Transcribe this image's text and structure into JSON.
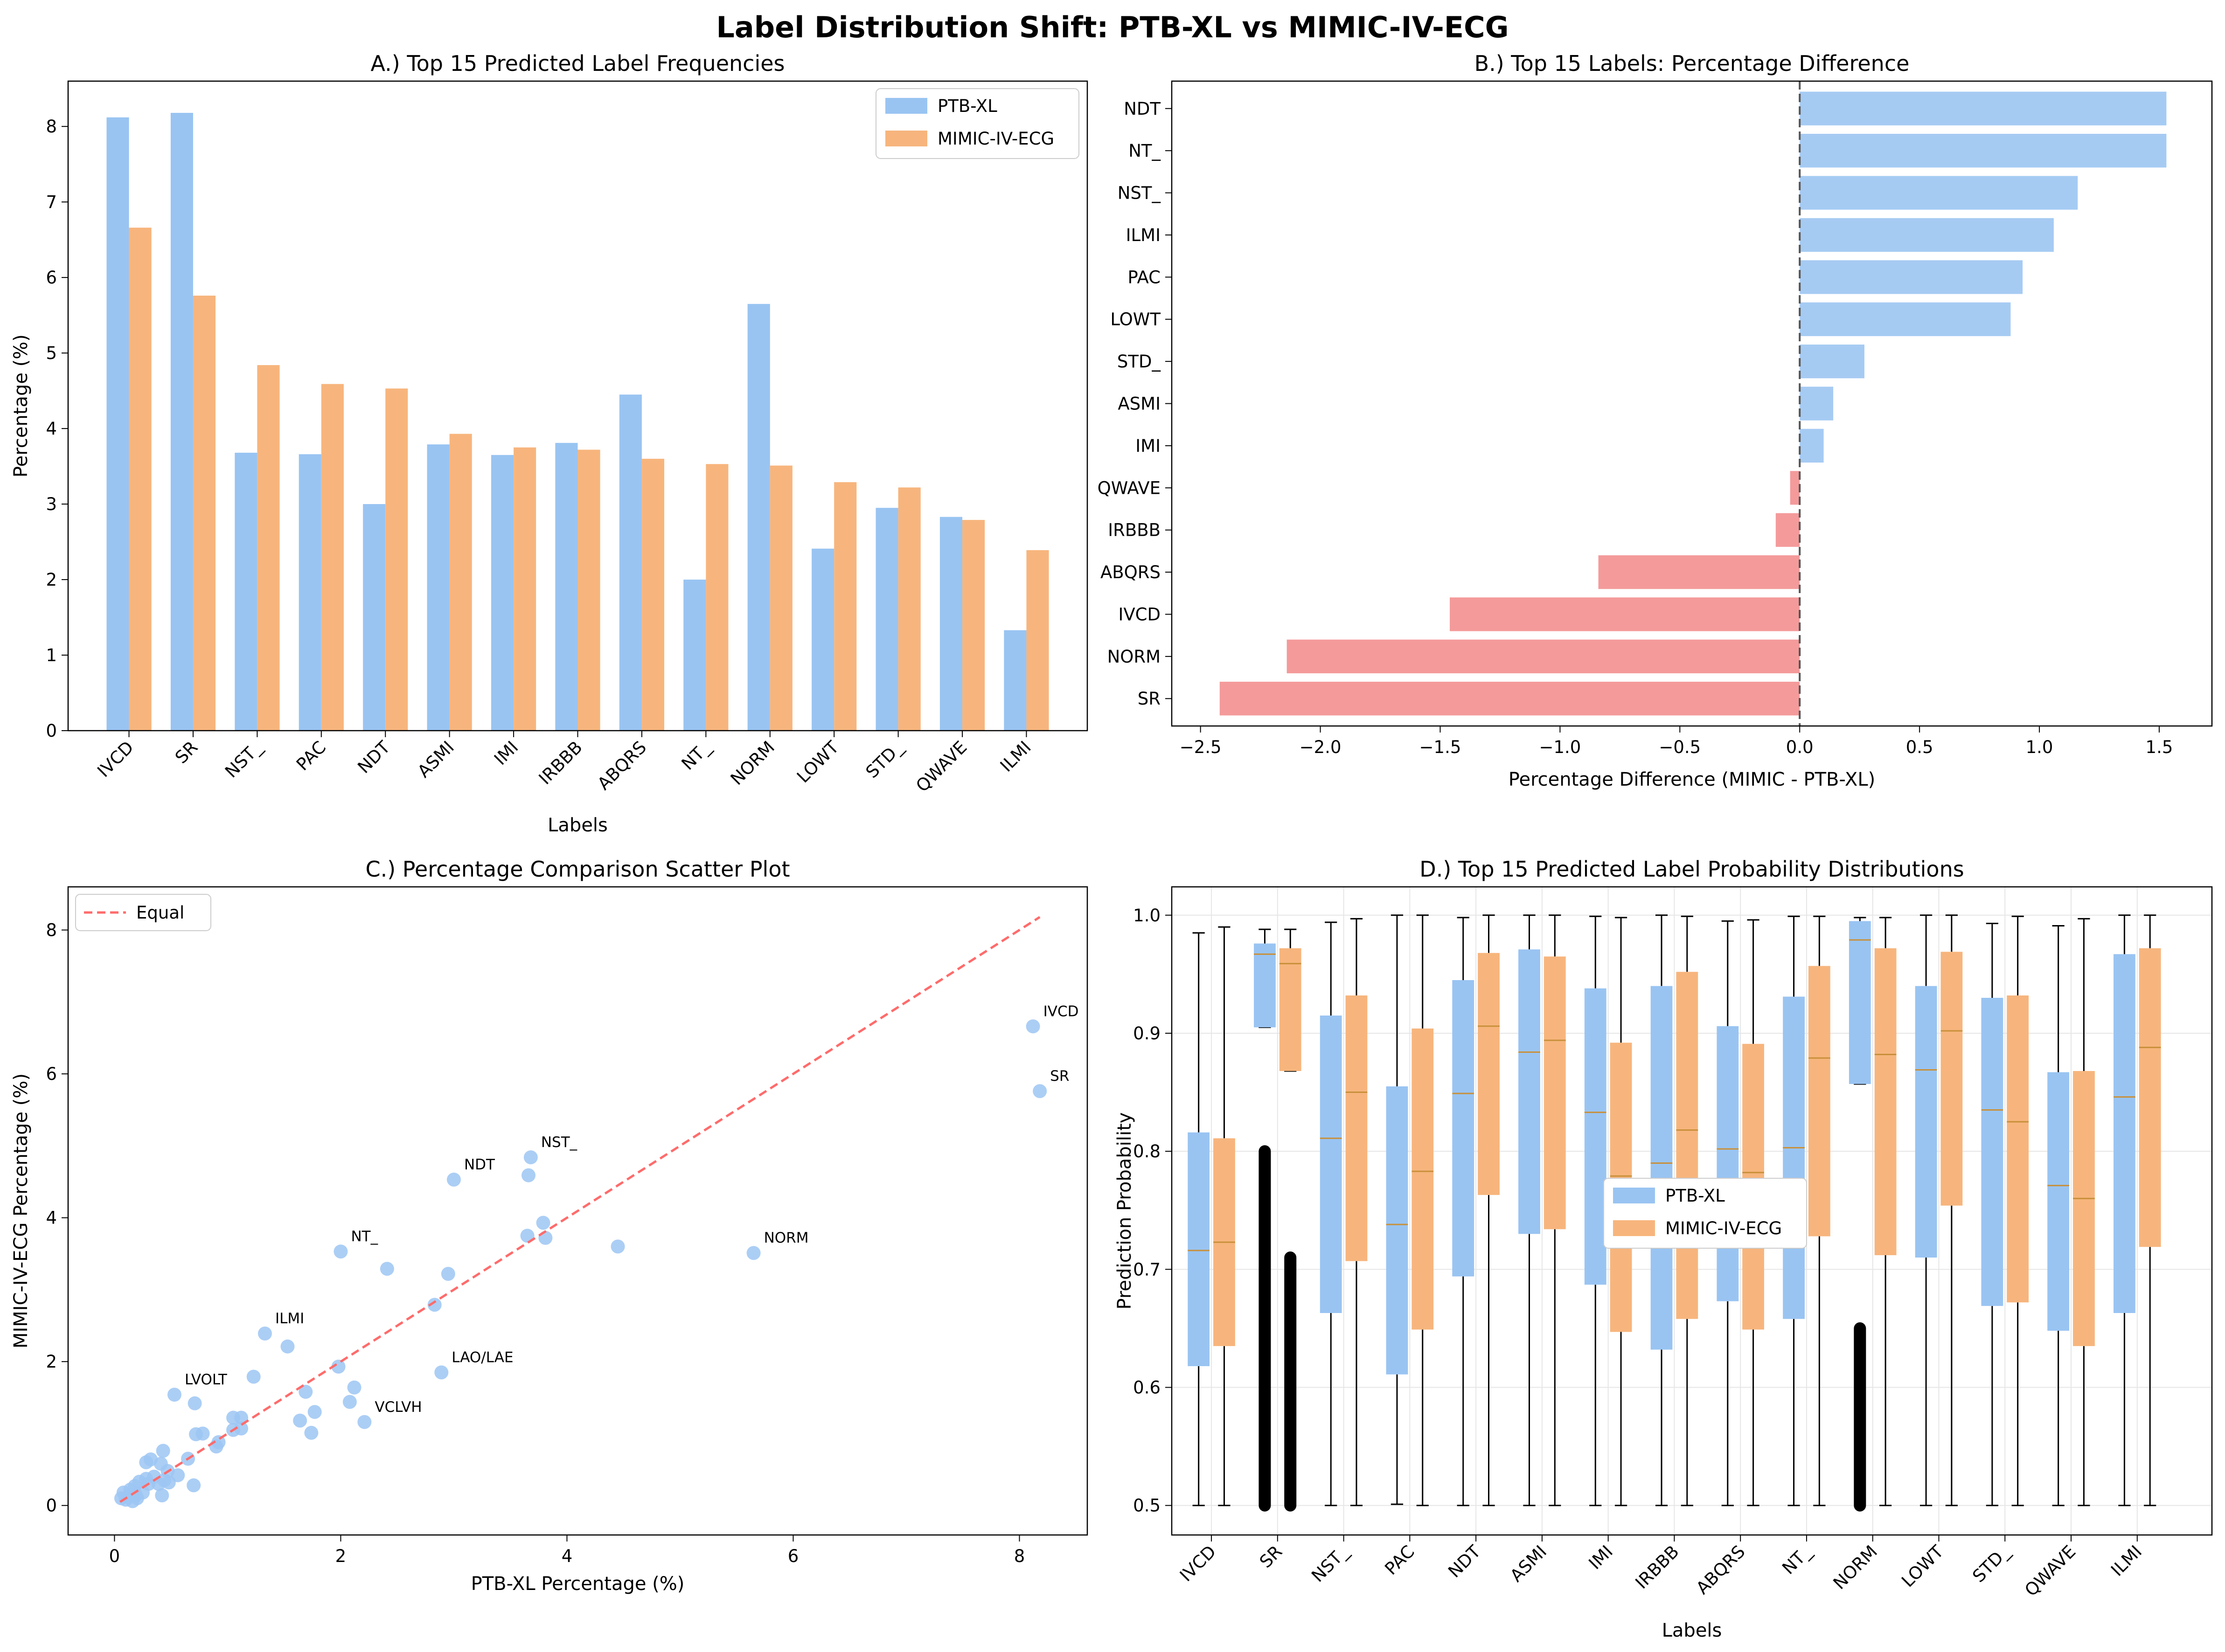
{
  "figure": {
    "title": "Label Distribution Shift: PTB-XL vs MIMIC-IV-ECG",
    "colors": {
      "ptb": "#99c4f2",
      "mimic": "#f7b57d",
      "positive": "#a6cbf3",
      "negative": "#f49a9b",
      "equal_line": "#ff6b6b",
      "scatter": "#9cc6f3",
      "median": "#c8903a"
    }
  },
  "chart_data": [
    {
      "type": "bar",
      "title": "A.) Top 15 Predicted Label Frequencies",
      "xlabel": "Labels",
      "ylabel": "Percentage (%)",
      "ylim": [
        0,
        8.6
      ],
      "yticks": [
        0,
        1,
        2,
        3,
        4,
        5,
        6,
        7,
        8
      ],
      "legend": "top-right",
      "categories": [
        "IVCD",
        "SR",
        "NST_",
        "PAC",
        "NDT",
        "ASMI",
        "IMI",
        "IRBBB",
        "ABQRS",
        "NT_",
        "NORM",
        "LOWT",
        "STD_",
        "QWAVE",
        "ILMI"
      ],
      "series": [
        {
          "name": "PTB-XL",
          "values": [
            8.12,
            8.18,
            3.68,
            3.66,
            3.0,
            3.79,
            3.65,
            3.81,
            4.45,
            2.0,
            5.65,
            2.41,
            2.95,
            2.83,
            1.33
          ]
        },
        {
          "name": "MIMIC-IV-ECG",
          "values": [
            6.66,
            5.76,
            4.84,
            4.59,
            4.53,
            3.93,
            3.75,
            3.72,
            3.6,
            3.53,
            3.51,
            3.29,
            3.22,
            2.79,
            2.39
          ]
        }
      ]
    },
    {
      "type": "bar",
      "orientation": "horizontal",
      "title": "B.) Top 15 Labels: Percentage Difference",
      "xlabel": "Percentage Difference (MIMIC - PTB-XL)",
      "xlim": [
        -2.62,
        1.72
      ],
      "xticks": [
        -2.5,
        -2.0,
        -1.5,
        -1.0,
        -0.5,
        0.0,
        0.5,
        1.0,
        1.5
      ],
      "xtick_labels": [
        "−2.5",
        "−2.0",
        "−1.5",
        "−1.0",
        "−0.5",
        "0.0",
        "0.5",
        "1.0",
        "1.5"
      ],
      "categories": [
        "NDT",
        "NT_",
        "NST_",
        "ILMI",
        "PAC",
        "LOWT",
        "STD_",
        "ASMI",
        "IMI",
        "QWAVE",
        "IRBBB",
        "ABQRS",
        "IVCD",
        "NORM",
        "SR"
      ],
      "values": [
        1.53,
        1.53,
        1.16,
        1.06,
        0.93,
        0.88,
        0.27,
        0.14,
        0.1,
        -0.04,
        -0.1,
        -0.84,
        -1.46,
        -2.14,
        -2.42
      ]
    },
    {
      "type": "scatter",
      "title": "C.) Percentage Comparison Scatter Plot",
      "xlabel": "PTB-XL Percentage (%)",
      "ylabel": "MIMIC-IV-ECG Percentage (%)",
      "xlim": [
        -0.41,
        8.6
      ],
      "ylim": [
        -0.41,
        8.6
      ],
      "xticks": [
        0,
        2,
        4,
        6,
        8
      ],
      "yticks": [
        0,
        2,
        4,
        6,
        8
      ],
      "legend": "top-left",
      "reference_line": {
        "name": "Equal",
        "from": [
          0.05,
          0.05
        ],
        "to": [
          8.18,
          8.18
        ]
      },
      "points": [
        [
          8.12,
          6.66
        ],
        [
          8.18,
          5.76
        ],
        [
          3.68,
          4.84
        ],
        [
          3.66,
          4.59
        ],
        [
          3.0,
          4.53
        ],
        [
          3.79,
          3.93
        ],
        [
          3.65,
          3.75
        ],
        [
          3.81,
          3.72
        ],
        [
          4.45,
          3.6
        ],
        [
          2.0,
          3.53
        ],
        [
          5.65,
          3.51
        ],
        [
          2.41,
          3.29
        ],
        [
          2.95,
          3.22
        ],
        [
          2.83,
          2.79
        ],
        [
          1.33,
          2.39
        ],
        [
          1.53,
          2.21
        ],
        [
          1.23,
          1.79
        ],
        [
          1.98,
          1.93
        ],
        [
          2.12,
          1.64
        ],
        [
          2.89,
          1.85
        ],
        [
          1.69,
          1.58
        ],
        [
          2.08,
          1.44
        ],
        [
          1.77,
          1.3
        ],
        [
          1.64,
          1.18
        ],
        [
          2.21,
          1.16
        ],
        [
          1.74,
          1.01
        ],
        [
          0.53,
          1.54
        ],
        [
          0.71,
          1.42
        ],
        [
          1.05,
          1.22
        ],
        [
          1.12,
          1.22
        ],
        [
          1.12,
          1.07
        ],
        [
          0.72,
          0.99
        ],
        [
          0.78,
          1.0
        ],
        [
          1.05,
          1.05
        ],
        [
          0.92,
          0.88
        ],
        [
          0.9,
          0.82
        ],
        [
          0.65,
          0.65
        ],
        [
          0.43,
          0.76
        ],
        [
          0.32,
          0.64
        ],
        [
          0.28,
          0.6
        ],
        [
          0.41,
          0.58
        ],
        [
          0.47,
          0.48
        ],
        [
          0.56,
          0.42
        ],
        [
          0.35,
          0.4
        ],
        [
          0.44,
          0.35
        ],
        [
          0.28,
          0.37
        ],
        [
          0.22,
          0.33
        ],
        [
          0.3,
          0.3
        ],
        [
          0.18,
          0.27
        ],
        [
          0.39,
          0.3
        ],
        [
          0.48,
          0.32
        ],
        [
          0.7,
          0.28
        ],
        [
          0.14,
          0.22
        ],
        [
          0.25,
          0.18
        ],
        [
          0.19,
          0.14
        ],
        [
          0.12,
          0.12
        ],
        [
          0.1,
          0.08
        ],
        [
          0.16,
          0.06
        ],
        [
          0.06,
          0.1
        ],
        [
          0.42,
          0.14
        ],
        [
          0.08,
          0.18
        ],
        [
          0.2,
          0.1
        ]
      ],
      "annotations": [
        {
          "label": "IVCD",
          "x": 8.12,
          "y": 6.66
        },
        {
          "label": "SR",
          "x": 8.18,
          "y": 5.76
        },
        {
          "label": "NST_",
          "x": 3.68,
          "y": 4.84
        },
        {
          "label": "NDT",
          "x": 3.0,
          "y": 4.53
        },
        {
          "label": "NORM",
          "x": 5.65,
          "y": 3.51
        },
        {
          "label": "NT_",
          "x": 2.0,
          "y": 3.53
        },
        {
          "label": "ILMI",
          "x": 1.33,
          "y": 2.39
        },
        {
          "label": "LAO/LAE",
          "x": 2.89,
          "y": 1.85
        },
        {
          "label": "LVOLT",
          "x": 0.53,
          "y": 1.54
        },
        {
          "label": "VCLVH",
          "x": 2.21,
          "y": 1.16
        }
      ]
    },
    {
      "type": "box",
      "title": "D.) Top 15 Predicted Label Probability Distributions",
      "xlabel": "Labels",
      "ylabel": "Prediction Probability",
      "ylim": [
        0.475,
        1.024
      ],
      "yticks": [
        0.5,
        0.6,
        0.7,
        0.8,
        0.9,
        1.0
      ],
      "ytick_labels": [
        "0.5",
        "0.6",
        "0.7",
        "0.8",
        "0.9",
        "1.0"
      ],
      "legend": "center",
      "categories": [
        "IVCD",
        "SR",
        "NST_",
        "PAC",
        "NDT",
        "ASMI",
        "IMI",
        "IRBBB",
        "ABQRS",
        "NT_",
        "NORM",
        "LOWT",
        "STD_",
        "QWAVE",
        "ILMI"
      ],
      "series": [
        {
          "name": "PTB-XL",
          "boxes": [
            {
              "min": 0.5,
              "q1": 0.618,
              "median": 0.716,
              "q3": 0.816,
              "max": 0.985
            },
            {
              "min": 0.905,
              "q1": 0.905,
              "median": 0.967,
              "q3": 0.976,
              "max": 0.988,
              "outliers": [
                0.5,
                0.8
              ]
            },
            {
              "min": 0.5,
              "q1": 0.663,
              "median": 0.811,
              "q3": 0.915,
              "max": 0.994
            },
            {
              "min": 0.501,
              "q1": 0.611,
              "median": 0.738,
              "q3": 0.855,
              "max": 1.0
            },
            {
              "min": 0.5,
              "q1": 0.694,
              "median": 0.849,
              "q3": 0.945,
              "max": 0.998
            },
            {
              "min": 0.5,
              "q1": 0.73,
              "median": 0.884,
              "q3": 0.971,
              "max": 1.0
            },
            {
              "min": 0.5,
              "q1": 0.687,
              "median": 0.833,
              "q3": 0.938,
              "max": 0.999
            },
            {
              "min": 0.5,
              "q1": 0.632,
              "median": 0.79,
              "q3": 0.94,
              "max": 1.0
            },
            {
              "min": 0.5,
              "q1": 0.673,
              "median": 0.802,
              "q3": 0.906,
              "max": 0.995
            },
            {
              "min": 0.5,
              "q1": 0.658,
              "median": 0.803,
              "q3": 0.931,
              "max": 0.999
            },
            {
              "min": 0.857,
              "q1": 0.857,
              "median": 0.979,
              "q3": 0.995,
              "max": 0.998,
              "outliers": [
                0.5,
                0.65
              ]
            },
            {
              "min": 0.5,
              "q1": 0.71,
              "median": 0.869,
              "q3": 0.94,
              "max": 1.0
            },
            {
              "min": 0.5,
              "q1": 0.669,
              "median": 0.835,
              "q3": 0.93,
              "max": 0.993
            },
            {
              "min": 0.5,
              "q1": 0.648,
              "median": 0.771,
              "q3": 0.867,
              "max": 0.991
            },
            {
              "min": 0.5,
              "q1": 0.663,
              "median": 0.846,
              "q3": 0.967,
              "max": 1.0
            }
          ]
        },
        {
          "name": "MIMIC-IV-ECG",
          "boxes": [
            {
              "min": 0.5,
              "q1": 0.635,
              "median": 0.723,
              "q3": 0.811,
              "max": 0.99
            },
            {
              "min": 0.868,
              "q1": 0.868,
              "median": 0.959,
              "q3": 0.972,
              "max": 0.988,
              "outliers": [
                0.5,
                0.71
              ]
            },
            {
              "min": 0.5,
              "q1": 0.707,
              "median": 0.85,
              "q3": 0.932,
              "max": 0.997
            },
            {
              "min": 0.5,
              "q1": 0.649,
              "median": 0.783,
              "q3": 0.904,
              "max": 1.0
            },
            {
              "min": 0.5,
              "q1": 0.763,
              "median": 0.906,
              "q3": 0.968,
              "max": 1.0
            },
            {
              "min": 0.5,
              "q1": 0.734,
              "median": 0.894,
              "q3": 0.965,
              "max": 1.0
            },
            {
              "min": 0.5,
              "q1": 0.647,
              "median": 0.779,
              "q3": 0.892,
              "max": 0.998
            },
            {
              "min": 0.5,
              "q1": 0.658,
              "median": 0.818,
              "q3": 0.952,
              "max": 0.999
            },
            {
              "min": 0.5,
              "q1": 0.649,
              "median": 0.782,
              "q3": 0.891,
              "max": 0.996
            },
            {
              "min": 0.5,
              "q1": 0.728,
              "median": 0.879,
              "q3": 0.957,
              "max": 0.999
            },
            {
              "min": 0.5,
              "q1": 0.712,
              "median": 0.882,
              "q3": 0.972,
              "max": 0.998
            },
            {
              "min": 0.5,
              "q1": 0.754,
              "median": 0.902,
              "q3": 0.969,
              "max": 1.0
            },
            {
              "min": 0.5,
              "q1": 0.672,
              "median": 0.825,
              "q3": 0.932,
              "max": 0.999
            },
            {
              "min": 0.5,
              "q1": 0.635,
              "median": 0.76,
              "q3": 0.868,
              "max": 0.997
            },
            {
              "min": 0.5,
              "q1": 0.719,
              "median": 0.888,
              "q3": 0.972,
              "max": 1.0
            }
          ]
        }
      ]
    }
  ]
}
